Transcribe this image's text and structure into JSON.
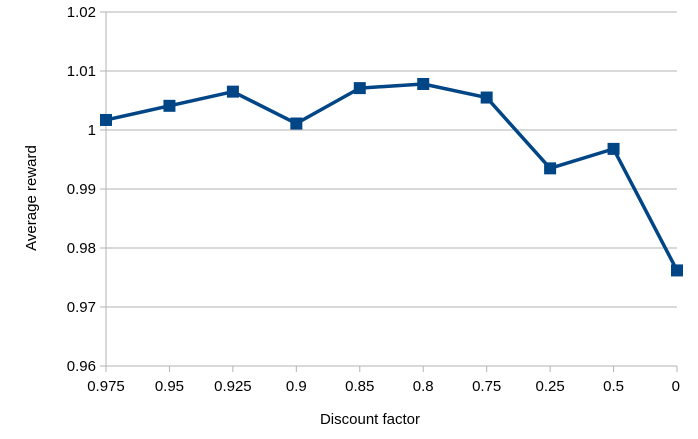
{
  "chart_data": {
    "type": "line",
    "xlabel": "Discount factor",
    "ylabel": "Average reward",
    "categories": [
      "0.975",
      "0.95",
      "0.925",
      "0.9",
      "0.85",
      "0.8",
      "0.75",
      "0.25",
      "0.5",
      "0"
    ],
    "series": [
      {
        "values": [
          1.0017,
          1.0041,
          1.0065,
          1.0011,
          1.0071,
          1.0078,
          1.0055,
          0.9935,
          0.9968,
          0.9762
        ],
        "color": "#004586",
        "marker": "square"
      }
    ],
    "ylim": [
      0.96,
      1.02
    ],
    "yticks": [
      "0.96",
      "0.97",
      "0.98",
      "0.99",
      "1",
      "1.01",
      "1.02"
    ],
    "grid": "horizontal",
    "legend": "none",
    "colors": {
      "line": "#004586",
      "grid": "#b3b3b3",
      "axis": "#b3b3b3"
    }
  }
}
